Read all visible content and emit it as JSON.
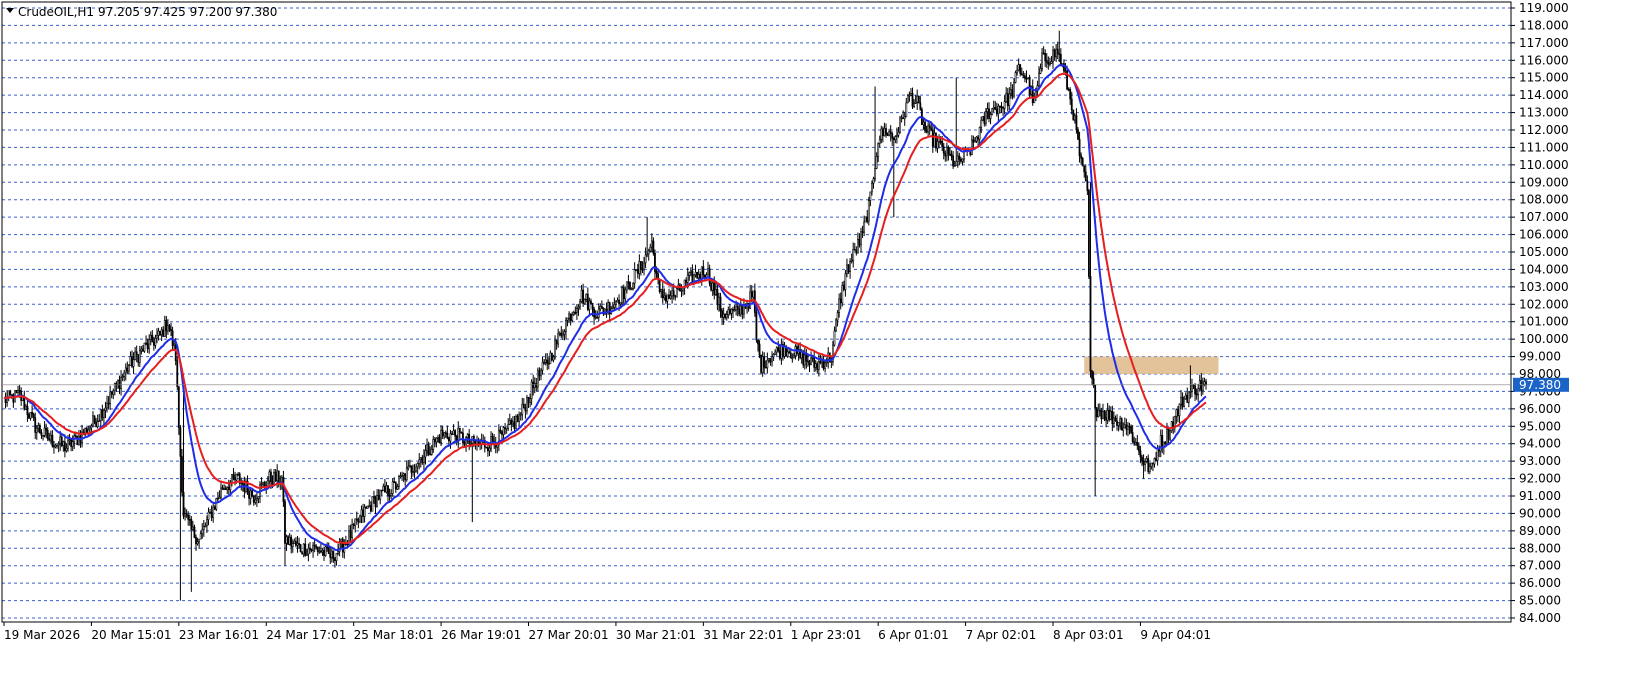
{
  "header": {
    "symbol_label": "CrudeOIL,H1",
    "ohlc": "97.205 97.425 97.200 97.380",
    "menu_icon": "triangle-down-icon"
  },
  "colors": {
    "background": "#ffffff",
    "grid": "#3a5fcd",
    "candle": "#000000",
    "ema_fast": "#1f2de6",
    "ema_slow": "#e61e1e",
    "zone": "#deb887",
    "axis_label_bg": "#1a64c8"
  },
  "chart_data": {
    "type": "candlestick",
    "title": "",
    "xlabel": "",
    "ylabel": "",
    "ylim": [
      84,
      119
    ],
    "y_ticks": [
      "84.000",
      "85.000",
      "86.000",
      "87.000",
      "88.000",
      "89.000",
      "90.000",
      "91.000",
      "92.000",
      "93.000",
      "94.000",
      "95.000",
      "96.000",
      "97.000",
      "98.000",
      "99.000",
      "100.000",
      "101.000",
      "102.000",
      "103.000",
      "104.000",
      "105.000",
      "106.000",
      "107.000",
      "108.000",
      "109.000",
      "110.000",
      "111.000",
      "112.000",
      "113.000",
      "114.000",
      "115.000",
      "116.000",
      "117.000",
      "118.000",
      "119.000"
    ],
    "x_ticks": [
      "19 Mar 2026",
      "20 Mar 15:01",
      "23 Mar 16:01",
      "24 Mar 17:01",
      "25 Mar 18:01",
      "26 Mar 19:01",
      "27 Mar 20:01",
      "30 Mar 21:01",
      "31 Mar 22:01",
      "1 Apr 23:01",
      "6 Apr 01:01",
      "7 Apr 02:01",
      "8 Apr 03:01",
      "9 Apr 04:01"
    ],
    "grid": true,
    "current_price": 97.38,
    "bars": 390,
    "price_path": [
      [
        0,
        96.5
      ],
      [
        10,
        96.8
      ],
      [
        20,
        95.0
      ],
      [
        30,
        94.2
      ],
      [
        40,
        93.8
      ],
      [
        50,
        94.5
      ],
      [
        60,
        95.5
      ],
      [
        70,
        97.0
      ],
      [
        80,
        98.5
      ],
      [
        90,
        99.5
      ],
      [
        100,
        100.2
      ],
      [
        105,
        101.0
      ],
      [
        110,
        99.0
      ],
      [
        112,
        95.0
      ],
      [
        115,
        90.0
      ],
      [
        120,
        89.0
      ],
      [
        125,
        88.5
      ],
      [
        130,
        89.5
      ],
      [
        135,
        90.5
      ],
      [
        140,
        91.5
      ],
      [
        150,
        92.0
      ],
      [
        160,
        91.0
      ],
      [
        170,
        92.0
      ],
      [
        178,
        92.0
      ],
      [
        180,
        88.5
      ],
      [
        190,
        88.0
      ],
      [
        200,
        88.0
      ],
      [
        210,
        87.5
      ],
      [
        220,
        88.5
      ],
      [
        230,
        90.0
      ],
      [
        240,
        91.0
      ],
      [
        250,
        91.5
      ],
      [
        260,
        92.5
      ],
      [
        270,
        93.5
      ],
      [
        280,
        94.5
      ],
      [
        290,
        94.5
      ],
      [
        300,
        94.0
      ],
      [
        310,
        94.0
      ],
      [
        320,
        94.5
      ],
      [
        330,
        95.5
      ],
      [
        340,
        97.5
      ],
      [
        350,
        99.0
      ],
      [
        360,
        101.0
      ],
      [
        370,
        102.5
      ],
      [
        380,
        101.5
      ],
      [
        390,
        102.0
      ],
      [
        400,
        103.0
      ],
      [
        410,
        104.5
      ],
      [
        415,
        105.5
      ],
      [
        420,
        102.5
      ],
      [
        430,
        102.5
      ],
      [
        440,
        103.5
      ],
      [
        450,
        104.0
      ],
      [
        460,
        101.5
      ],
      [
        470,
        101.5
      ],
      [
        480,
        102.5
      ],
      [
        482,
        100.0
      ],
      [
        485,
        98.5
      ],
      [
        490,
        99.0
      ],
      [
        500,
        99.5
      ],
      [
        510,
        99.0
      ],
      [
        520,
        98.5
      ],
      [
        530,
        99.0
      ],
      [
        535,
        102.0
      ],
      [
        540,
        104.0
      ],
      [
        550,
        106.0
      ],
      [
        555,
        108.0
      ],
      [
        560,
        111.5
      ],
      [
        565,
        112.0
      ],
      [
        570,
        111.5
      ],
      [
        575,
        112.5
      ],
      [
        580,
        114.0
      ],
      [
        585,
        113.5
      ],
      [
        590,
        112.0
      ],
      [
        600,
        111.0
      ],
      [
        610,
        110.0
      ],
      [
        620,
        111.0
      ],
      [
        630,
        113.0
      ],
      [
        640,
        113.5
      ],
      [
        645,
        114.0
      ],
      [
        650,
        115.5
      ],
      [
        655,
        115.0
      ],
      [
        660,
        113.5
      ],
      [
        665,
        116.0
      ],
      [
        670,
        116.2
      ],
      [
        675,
        116.5
      ],
      [
        680,
        115.0
      ],
      [
        685,
        113.0
      ],
      [
        690,
        110.0
      ],
      [
        694,
        108.5
      ],
      [
        696,
        98.0
      ],
      [
        700,
        96.0
      ],
      [
        710,
        95.5
      ],
      [
        720,
        95.0
      ],
      [
        725,
        94.0
      ],
      [
        730,
        93.0
      ],
      [
        735,
        92.5
      ],
      [
        740,
        94.0
      ],
      [
        745,
        94.5
      ],
      [
        750,
        95.5
      ],
      [
        755,
        96.5
      ],
      [
        760,
        97.0
      ],
      [
        765,
        97.3
      ],
      [
        770,
        97.38
      ]
    ],
    "spikes": [
      {
        "bar": 113,
        "low": 85.0
      },
      {
        "bar": 115,
        "high": 98.0
      },
      {
        "bar": 120,
        "low": 85.5
      },
      {
        "bar": 180,
        "low": 87.0
      },
      {
        "bar": 300,
        "low": 89.5
      },
      {
        "bar": 330,
        "low": 95.0
      },
      {
        "bar": 412,
        "high": 107.0
      },
      {
        "bar": 558,
        "high": 114.5
      },
      {
        "bar": 570,
        "low": 107.0
      },
      {
        "bar": 610,
        "high": 115.0
      },
      {
        "bar": 676,
        "high": 117.7
      },
      {
        "bar": 696,
        "high": 109.0
      },
      {
        "bar": 699,
        "low": 91.0
      },
      {
        "bar": 730,
        "low": 92.0
      },
      {
        "bar": 760,
        "high": 98.5
      }
    ],
    "series": [
      {
        "type": "ema",
        "period": 20,
        "color": "#1f2de6"
      },
      {
        "type": "ema",
        "period": 34,
        "color": "#e61e1e"
      }
    ],
    "zone": {
      "price_low": 98.0,
      "price_high": 99.0,
      "bar_start": 692,
      "bar_end": 778
    }
  }
}
